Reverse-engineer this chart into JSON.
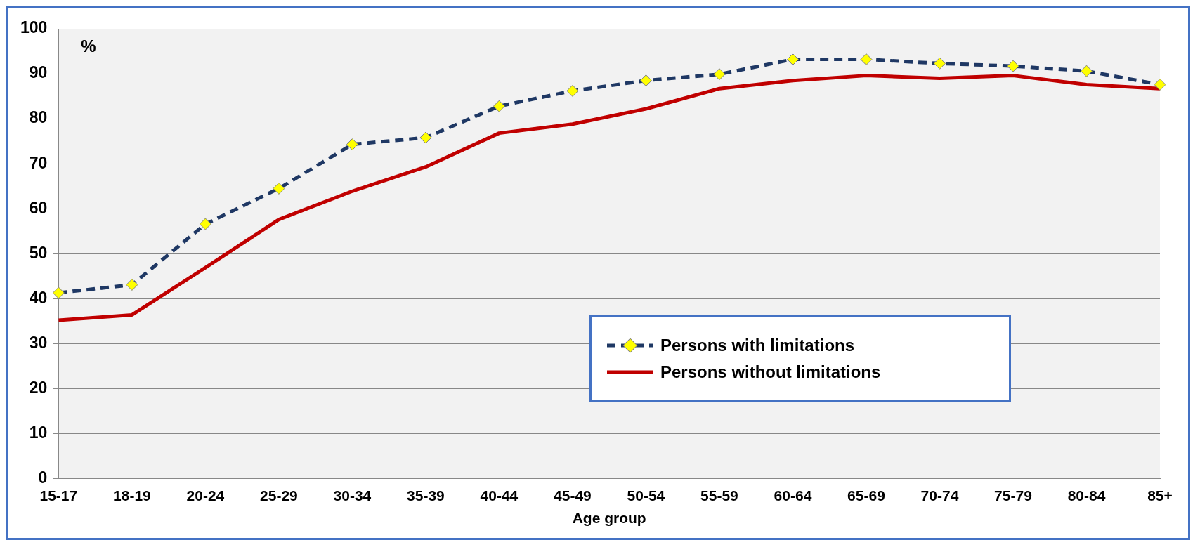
{
  "chart_data": {
    "type": "line",
    "xlabel": "Age group",
    "annotations": [
      "%"
    ],
    "categories": [
      "15-17",
      "18-19",
      "20-24",
      "25-29",
      "30-34",
      "35-39",
      "40-44",
      "45-49",
      "50-54",
      "55-59",
      "60-64",
      "65-69",
      "70-74",
      "75-79",
      "80-84",
      "85+"
    ],
    "series": [
      {
        "name": "Persons with limitations",
        "color": "#1f3864",
        "marker": "diamond",
        "line_style": "dashed",
        "values": [
          41.3,
          43.1,
          56.6,
          64.5,
          74.3,
          75.8,
          82.8,
          86.2,
          88.5,
          89.9,
          93.2,
          93.2,
          92.3,
          91.7,
          90.6,
          87.6
        ]
      },
      {
        "name": "Persons without limitations",
        "color": "#c00000",
        "marker": "none",
        "line_style": "solid",
        "values": [
          35.2,
          36.4,
          46.9,
          57.6,
          63.9,
          69.3,
          76.8,
          78.8,
          82.2,
          86.7,
          88.5,
          89.6,
          89.0,
          89.6,
          87.6,
          86.7
        ]
      }
    ],
    "ylim": [
      0,
      100
    ],
    "yticks": [
      0,
      10,
      20,
      30,
      40,
      50,
      60,
      70,
      80,
      90,
      100
    ],
    "grid": "y",
    "legend": "bottom right"
  }
}
